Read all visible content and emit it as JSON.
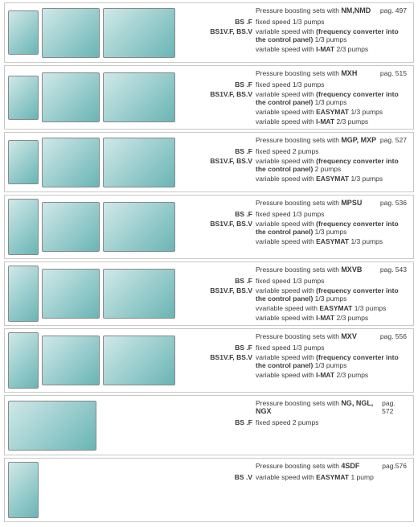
{
  "colors": {
    "border": "#c8c8c8",
    "text": "#3a3a3a",
    "pump_dark": "#6ab5b5",
    "pump_light": "#d0e8e8",
    "background": "#ffffff"
  },
  "rows": [
    {
      "images": [
        "small",
        "med",
        "large"
      ],
      "header_label": "Pressure boosting sets with",
      "model": "NM,NMD",
      "page": "pag. 497",
      "lines": [
        {
          "code": "BS .F",
          "desc": "fixed speed  1/3 pumps"
        },
        {
          "code": "BS1V.F, BS.V",
          "desc": "variable speed with <b>(frequency converter into the control panel)</b>  1/3 pumps"
        },
        {
          "code": "",
          "desc": "variable speed with <b>I-MAT</b>  2/3 pumps"
        }
      ]
    },
    {
      "images": [
        "small",
        "med",
        "large"
      ],
      "header_label": "Pressure boosting sets with",
      "model": "MXH",
      "page": "pag. 515",
      "lines": [
        {
          "code": "BS .F",
          "desc": "fixed speed  1/3 pumps"
        },
        {
          "code": "BS1V.F, BS.V",
          "desc": "variable speed with <b>(frequency converter into the control panel)</b>  1/3 pumps"
        },
        {
          "code": "",
          "desc": "variable speed with <b>EASYMAT</b>  1/3 pumps"
        },
        {
          "code": "",
          "desc": "variable speed with <b>I-MAT</b>  2/3 pumps"
        }
      ]
    },
    {
      "images": [
        "small",
        "med",
        "large"
      ],
      "header_label": "Pressure boosting sets with",
      "model": "MGP, MXP",
      "page": "pag. 527",
      "lines": [
        {
          "code": "BS .F",
          "desc": "fixed speed  2 pumps"
        },
        {
          "code": "BS1V.F, BS.V",
          "desc": "variable speed with <b>(frequency converter into the control panel)</b>  2 pumps"
        },
        {
          "code": "",
          "desc": "variable speed with <b>EASYMAT</b>  1/3 pumps"
        }
      ]
    },
    {
      "images": [
        "tall",
        "med",
        "large"
      ],
      "header_label": "Pressure boosting sets with",
      "model": "MPSU",
      "page": "pag. 536",
      "lines": [
        {
          "code": "BS .F",
          "desc": "fixed speed  1/3 pumps"
        },
        {
          "code": "BS1V.F, BS.V",
          "desc": "variable speed with <b>(frequency converter into the control panel)</b>  1/3 pumps"
        },
        {
          "code": "",
          "desc": "variable speed with <b>EASYMAT</b>  1/3 pumps"
        }
      ]
    },
    {
      "images": [
        "tall",
        "med",
        "large"
      ],
      "header_label": "Pressure boosting sets with",
      "model": "MXVB",
      "page": "pag. 543",
      "lines": [
        {
          "code": "BS .F",
          "desc": "fixed speed  1/3 pumps"
        },
        {
          "code": "BS1V.F, BS.V",
          "desc": "variable speed with <b>(frequency converter into the control panel)</b>  1/3 pumps"
        },
        {
          "code": "",
          "desc": "vvariable speed with <b>EASYMAT</b>  1/3 pumps"
        },
        {
          "code": "",
          "desc": "variable speed with <b>I-MAT</b> 2/3 pumps"
        }
      ]
    },
    {
      "images": [
        "tall",
        "med",
        "large"
      ],
      "header_label": "Pressure boosting sets with",
      "model": "MXV",
      "page": "pag. 556",
      "lines": [
        {
          "code": "BS .F",
          "desc": "fixed speed  1/3 pumps"
        },
        {
          "code": "BS1V.F, BS.V",
          "desc": "variable speed with <b>(frequency converter into the control panel)</b>  1/3 pumps"
        },
        {
          "code": "",
          "desc": "variable speed with <b>I-MAT</b>  2/3 pumps"
        }
      ]
    },
    {
      "images": [
        "wide"
      ],
      "header_label": "Pressure boosting sets with",
      "model": "NG, NGL, NGX",
      "page": "pag. 572",
      "lines": [
        {
          "code": "BS .F",
          "desc": "fixed speed  2 pumps"
        }
      ]
    },
    {
      "images": [
        "tall"
      ],
      "header_label": "Pressure boosting sets with",
      "model": "4SDF",
      "page": "pag.576",
      "lines": [
        {
          "code": "BS .V",
          "desc": "variable speed with <b>EASYMAT</b>  1 pump"
        }
      ]
    }
  ]
}
